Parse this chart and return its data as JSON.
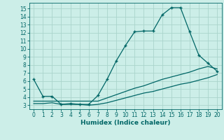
{
  "xlabel": "Humidex (Indice chaleur)",
  "bg_color": "#cceee8",
  "grid_color": "#aad4cc",
  "line_color": "#006666",
  "xlim": [
    -0.5,
    20.5
  ],
  "ylim": [
    2.5,
    15.7
  ],
  "xticks": [
    0,
    1,
    2,
    3,
    4,
    5,
    6,
    7,
    8,
    9,
    10,
    11,
    12,
    13,
    14,
    15,
    16,
    17,
    18,
    19,
    20
  ],
  "yticks": [
    3,
    4,
    5,
    6,
    7,
    8,
    9,
    10,
    11,
    12,
    13,
    14,
    15
  ],
  "line1_x": [
    0,
    1,
    2,
    3,
    4,
    5,
    6,
    7,
    8,
    9,
    10,
    11,
    12,
    13,
    14,
    15,
    16,
    17,
    18,
    19,
    20
  ],
  "line1_y": [
    6.2,
    4.1,
    4.1,
    3.1,
    3.2,
    3.1,
    3.1,
    4.2,
    6.2,
    8.5,
    10.4,
    12.1,
    12.2,
    12.2,
    14.2,
    15.1,
    15.1,
    12.1,
    9.2,
    8.2,
    7.2
  ],
  "line2_x": [
    0,
    7,
    8,
    9,
    10,
    11,
    12,
    13,
    14,
    15,
    16,
    17,
    18,
    19,
    20
  ],
  "line2_y": [
    3.5,
    3.5,
    3.9,
    4.3,
    4.7,
    5.1,
    5.4,
    5.8,
    6.2,
    6.5,
    6.8,
    7.1,
    7.5,
    7.8,
    7.5
  ],
  "line3_x": [
    0,
    1,
    2,
    3,
    4,
    5,
    6,
    7,
    8,
    9,
    10,
    11,
    12,
    13,
    14,
    15,
    16,
    17,
    18,
    19,
    20
  ],
  "line3_y": [
    3.2,
    3.2,
    3.3,
    3.1,
    3.1,
    3.1,
    3.0,
    3.1,
    3.3,
    3.6,
    3.9,
    4.2,
    4.5,
    4.7,
    5.0,
    5.3,
    5.6,
    5.8,
    6.1,
    6.4,
    6.8
  ],
  "xlabel_fontsize": 6.5,
  "tick_fontsize": 5.5
}
